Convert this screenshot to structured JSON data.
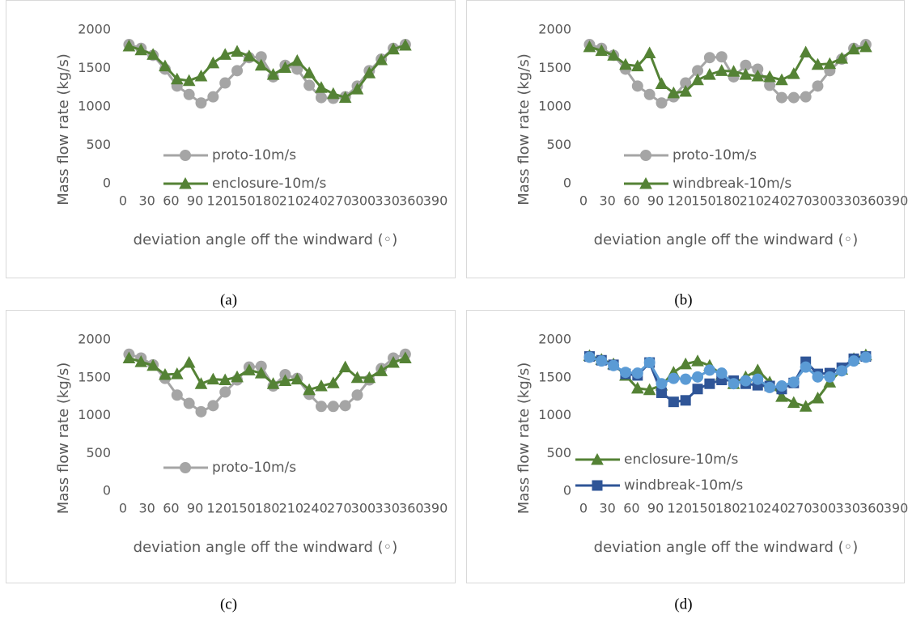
{
  "chart_data": [
    {
      "type": "line",
      "caption": "(a)",
      "x_label": "deviation angle off the windward (◦)",
      "y_label": "Mass flow rate (kg/s)",
      "x": [
        7.5,
        22.5,
        37.5,
        52.5,
        67.5,
        82.5,
        97.5,
        112.5,
        127.5,
        142.5,
        157.5,
        172.5,
        187.5,
        202.5,
        217.5,
        232.5,
        247.5,
        262.5,
        277.5,
        292.5,
        307.5,
        322.5,
        337.5,
        352.5
      ],
      "xlim": [
        0,
        390
      ],
      "xticks": [
        0,
        30,
        60,
        90,
        120,
        150,
        180,
        210,
        240,
        270,
        300,
        330,
        360,
        390
      ],
      "ylim": [
        0,
        2000
      ],
      "yticks": [
        0,
        500,
        1000,
        1500,
        2000
      ],
      "grid": false,
      "legend": "lower center",
      "series": [
        {
          "name": "proto-10m/s",
          "color": "#a5a5a5",
          "marker": "circle",
          "values": [
            1810,
            1760,
            1670,
            1490,
            1270,
            1160,
            1050,
            1130,
            1310,
            1470,
            1640,
            1650,
            1390,
            1540,
            1490,
            1280,
            1120,
            1110,
            1130,
            1270,
            1470,
            1620,
            1760,
            1810
          ]
        },
        {
          "name": "enclosure-10m/s",
          "color": "#548235",
          "marker": "triangle",
          "values": [
            1790,
            1740,
            1680,
            1530,
            1360,
            1340,
            1400,
            1570,
            1680,
            1720,
            1660,
            1540,
            1420,
            1510,
            1600,
            1440,
            1250,
            1170,
            1120,
            1230,
            1440,
            1610,
            1750,
            1800
          ]
        }
      ]
    },
    {
      "type": "line",
      "caption": "(b)",
      "x_label": "deviation angle off the windward (◦)",
      "y_label": "Mass flow rate (kg/s)",
      "x": [
        7.5,
        22.5,
        37.5,
        52.5,
        67.5,
        82.5,
        97.5,
        112.5,
        127.5,
        142.5,
        157.5,
        172.5,
        187.5,
        202.5,
        217.5,
        232.5,
        247.5,
        262.5,
        277.5,
        292.5,
        307.5,
        322.5,
        337.5,
        352.5
      ],
      "xlim": [
        0,
        390
      ],
      "xticks": [
        0,
        30,
        60,
        90,
        120,
        150,
        180,
        210,
        240,
        270,
        300,
        330,
        360,
        390
      ],
      "ylim": [
        0,
        2000
      ],
      "yticks": [
        0,
        500,
        1000,
        1500,
        2000
      ],
      "grid": false,
      "legend": "lower center",
      "series": [
        {
          "name": "proto-10m/s",
          "color": "#a5a5a5",
          "marker": "circle",
          "values": [
            1810,
            1760,
            1670,
            1490,
            1270,
            1160,
            1050,
            1130,
            1310,
            1470,
            1640,
            1650,
            1390,
            1540,
            1490,
            1280,
            1120,
            1120,
            1130,
            1270,
            1470,
            1620,
            1760,
            1810
          ]
        },
        {
          "name": "windbreak-10m/s",
          "color": "#548235",
          "marker": "triangle",
          "values": [
            1780,
            1730,
            1670,
            1550,
            1530,
            1700,
            1300,
            1180,
            1200,
            1350,
            1420,
            1470,
            1460,
            1420,
            1400,
            1390,
            1350,
            1430,
            1710,
            1550,
            1560,
            1630,
            1750,
            1780
          ]
        }
      ]
    },
    {
      "type": "line",
      "caption": "(c)",
      "x_label": "deviation angle off the windward (◦)",
      "y_label": "Mass flow rate (kg/s)",
      "x": [
        7.5,
        22.5,
        37.5,
        52.5,
        67.5,
        82.5,
        97.5,
        112.5,
        127.5,
        142.5,
        157.5,
        172.5,
        187.5,
        202.5,
        217.5,
        232.5,
        247.5,
        262.5,
        277.5,
        292.5,
        307.5,
        322.5,
        337.5,
        352.5
      ],
      "xlim": [
        0,
        390
      ],
      "xticks": [
        0,
        30,
        60,
        90,
        120,
        150,
        180,
        210,
        240,
        270,
        300,
        330,
        360,
        390
      ],
      "ylim": [
        0,
        2000
      ],
      "yticks": [
        0,
        500,
        1000,
        1500,
        2000
      ],
      "grid": false,
      "legend": "lower center",
      "series": [
        {
          "name": "proto-10m/s",
          "color": "#a5a5a5",
          "marker": "circle",
          "values": [
            1810,
            1760,
            1670,
            1490,
            1270,
            1160,
            1050,
            1130,
            1310,
            1470,
            1640,
            1650,
            1390,
            1540,
            1490,
            1280,
            1120,
            1120,
            1130,
            1270,
            1470,
            1620,
            1760,
            1810
          ]
        },
        {
          "color": "#548235",
          "marker": "triangle",
          "values": [
            1760,
            1710,
            1660,
            1540,
            1550,
            1700,
            1420,
            1480,
            1470,
            1510,
            1600,
            1560,
            1420,
            1460,
            1480,
            1340,
            1390,
            1430,
            1640,
            1500,
            1500,
            1590,
            1700,
            1760
          ]
        }
      ]
    },
    {
      "type": "line",
      "caption": "(d)",
      "x_label": "deviation angle off the windward (◦)",
      "y_label": "Mass flow rate (kg/s)",
      "x": [
        7.5,
        22.5,
        37.5,
        52.5,
        67.5,
        82.5,
        97.5,
        112.5,
        127.5,
        142.5,
        157.5,
        172.5,
        187.5,
        202.5,
        217.5,
        232.5,
        247.5,
        262.5,
        277.5,
        292.5,
        307.5,
        322.5,
        337.5,
        352.5
      ],
      "xlim": [
        0,
        390
      ],
      "xticks": [
        0,
        30,
        60,
        90,
        120,
        150,
        180,
        210,
        240,
        270,
        300,
        330,
        360,
        390
      ],
      "ylim": [
        0,
        2000
      ],
      "yticks": [
        0,
        500,
        1000,
        1500,
        2000
      ],
      "grid": false,
      "legend": "lower left",
      "series": [
        {
          "name": "enclosure-10m/s",
          "color": "#548235",
          "marker": "triangle",
          "values": [
            1790,
            1740,
            1680,
            1530,
            1360,
            1340,
            1400,
            1570,
            1680,
            1720,
            1660,
            1540,
            1420,
            1510,
            1600,
            1440,
            1250,
            1170,
            1120,
            1230,
            1440,
            1610,
            1750,
            1800
          ]
        },
        {
          "name": "windbreak-10m/s",
          "color": "#2f5597",
          "marker": "square",
          "values": [
            1780,
            1730,
            1670,
            1550,
            1530,
            1700,
            1300,
            1180,
            1200,
            1350,
            1420,
            1470,
            1460,
            1420,
            1400,
            1390,
            1350,
            1430,
            1710,
            1550,
            1560,
            1630,
            1750,
            1780
          ]
        },
        {
          "color": "#5b9bd5",
          "marker": "circle",
          "values": [
            1770,
            1720,
            1660,
            1570,
            1560,
            1700,
            1420,
            1490,
            1480,
            1510,
            1600,
            1560,
            1420,
            1460,
            1480,
            1370,
            1390,
            1440,
            1640,
            1510,
            1510,
            1590,
            1720,
            1770
          ]
        }
      ]
    }
  ]
}
